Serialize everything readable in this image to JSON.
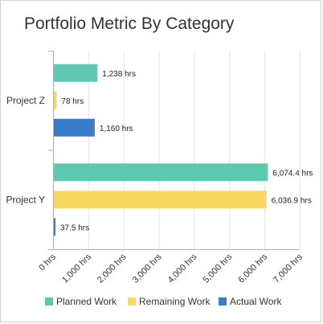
{
  "chart_data": {
    "type": "bar",
    "orientation": "horizontal",
    "title": "Portfolio Metric By Category",
    "categories": [
      "Project Z",
      "Project Y"
    ],
    "series": [
      {
        "name": "Planned Work",
        "color": "#5fc8b0",
        "values": [
          1238,
          6074.4
        ],
        "labels": [
          "1,238 hrs",
          "6,074.4 hrs"
        ]
      },
      {
        "name": "Remaining Work",
        "color": "#f7d860",
        "values": [
          78,
          6036.9
        ],
        "labels": [
          "78 hrs",
          "6,036.9 hrs"
        ]
      },
      {
        "name": "Actual Work",
        "color": "#3a7cc9",
        "values": [
          1160,
          37.5
        ],
        "labels": [
          "1,160 hrs",
          "37.5 hrs"
        ]
      }
    ],
    "x_ticks": [
      0,
      1000,
      2000,
      3000,
      4000,
      5000,
      6000,
      7000
    ],
    "x_tick_labels": [
      "0 hrs",
      "1,000 hrs",
      "2,000 hrs",
      "3,000 hrs",
      "4,000 hrs",
      "5,000 hrs",
      "6,000 hrs",
      "7,000 hrs"
    ],
    "xlim": [
      0,
      7000
    ],
    "grid": true,
    "legend_position": "bottom"
  }
}
